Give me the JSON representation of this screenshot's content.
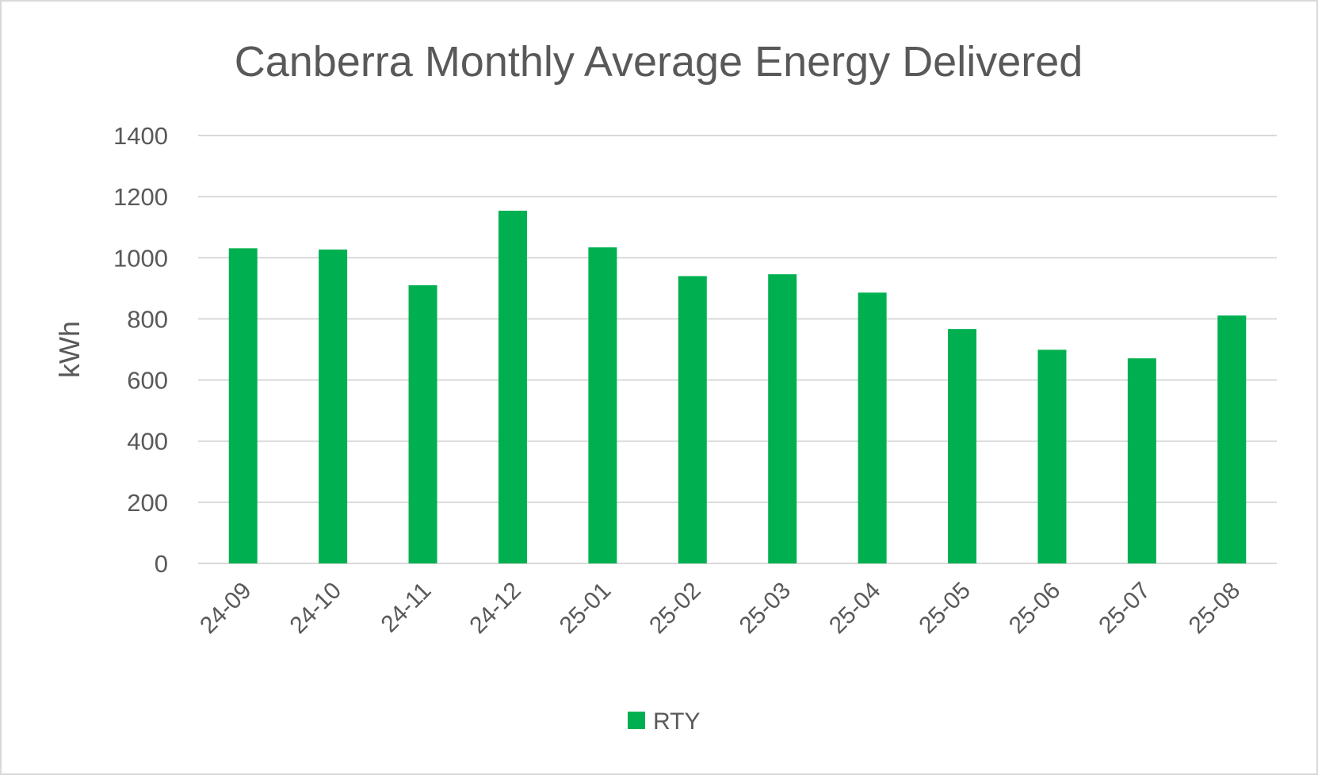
{
  "chart_data": {
    "type": "bar",
    "title": "Canberra Monthly Average Energy Delivered",
    "xlabel": "",
    "ylabel": "kWh",
    "ylim": [
      0,
      1400
    ],
    "yticks": [
      0,
      200,
      400,
      600,
      800,
      1000,
      1200,
      1400
    ],
    "grid": true,
    "legend_position": "bottom",
    "categories": [
      "24-09",
      "24-10",
      "24-11",
      "24-12",
      "25-01",
      "25-02",
      "25-03",
      "25-04",
      "25-05",
      "25-06",
      "25-07",
      "25-08"
    ],
    "series": [
      {
        "name": "RTY",
        "color": "#00B050",
        "values": [
          1031,
          1027,
          910,
          1154,
          1034,
          940,
          946,
          886,
          767,
          699,
          671,
          811
        ]
      }
    ]
  }
}
